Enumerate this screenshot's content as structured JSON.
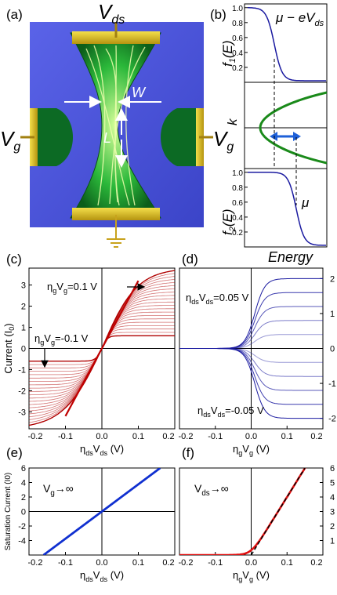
{
  "figure": {
    "panel_labels": {
      "a": "(a)",
      "b": "(b)",
      "c": "(c)",
      "d": "(d)",
      "e": "(e)",
      "f": "(f)"
    },
    "device": {
      "vds": "V",
      "vds_sub": "ds",
      "vg_left": "V",
      "vg_right": "V",
      "vg_sub": "g",
      "w": "W",
      "l": "L"
    },
    "energy_panel": {
      "f1_label": "f",
      "f1_sub": "1",
      "f1_arg": "(E)",
      "f2_label": "f",
      "f2_sub": "2",
      "f2_arg": "(E)",
      "k_label": "k",
      "mu_minus": "μ − eV",
      "mu_minus_sub": "ds",
      "mu": "μ",
      "energy_label": "Energy",
      "yticks": [
        "1.0",
        "0.8",
        "0.6",
        "0.4",
        "0.2"
      ]
    }
  },
  "chart_data": [
    {
      "panel": "c",
      "type": "line",
      "xlabel": "η",
      "xlabel_sub1": "ds",
      "xlabel_mid": "V",
      "xlabel_sub2": "ds",
      "xlabel_unit": " (V)",
      "ylabel": "Current (I",
      "ylabel_sub": "0",
      "ylabel_end": ")",
      "xlim": [
        -0.2,
        0.2
      ],
      "ylim": [
        -3.8,
        3.8
      ],
      "xticks": [
        "-0.2",
        "-0.1",
        "0.0",
        "0.1",
        "0.2"
      ],
      "yticks": [
        "3",
        "2",
        "1",
        "0",
        "-1",
        "-2",
        "-3"
      ],
      "annotation_top": "η",
      "annotation_top_sub1": "g",
      "annotation_top_mid": "V",
      "annotation_top_sub2": "g",
      "annotation_top_val": "=0.1 V",
      "annotation_bottom": "η",
      "annotation_bottom_sub1": "g",
      "annotation_bottom_mid": "V",
      "annotation_bottom_sub2": "g",
      "annotation_bottom_val": "=-0.1 V",
      "family_vg": [
        -0.1,
        -0.09,
        -0.08,
        -0.07,
        -0.06,
        -0.05,
        -0.04,
        -0.03,
        -0.02,
        -0.01,
        0.0,
        0.01,
        0.02,
        0.03,
        0.04,
        0.05,
        0.06,
        0.07,
        0.08,
        0.09,
        0.1
      ],
      "color": "#b00000"
    },
    {
      "panel": "d",
      "type": "line",
      "xlabel": "η",
      "xlabel_sub1": "g",
      "xlabel_mid": "V",
      "xlabel_sub2": "g",
      "xlabel_unit": " (V)",
      "xlim": [
        -0.2,
        0.2
      ],
      "ylim": [
        -2.3,
        2.3
      ],
      "xticks": [
        "-0.2",
        "-0.1",
        "0.0",
        "0.1",
        "0.2"
      ],
      "yticks": [
        "2",
        "1",
        "0",
        "-1",
        "-2"
      ],
      "annotation_top": "η",
      "annotation_top_sub1": "ds",
      "annotation_top_mid": "V",
      "annotation_top_sub2": "ds",
      "annotation_top_val": "=0.05 V",
      "annotation_bottom": "η",
      "annotation_bottom_sub1": "ds",
      "annotation_bottom_mid": "V",
      "annotation_bottom_sub2": "ds",
      "annotation_bottom_val": "=-0.05 V",
      "family_vds": [
        0.05,
        0.04,
        0.03,
        0.02,
        0.01,
        -0.01,
        -0.02,
        -0.03,
        -0.04,
        -0.05
      ],
      "color": "#1a1aa0"
    },
    {
      "panel": "e",
      "type": "line",
      "xlabel": "η",
      "xlabel_sub1": "ds",
      "xlabel_mid": "V",
      "xlabel_sub2": "ds",
      "xlabel_unit": " (V)",
      "ylabel": "Saturation Current (I0)",
      "xlim": [
        -0.2,
        0.2
      ],
      "ylim": [
        -6,
        6
      ],
      "xticks": [
        "-0.2",
        "-0.1",
        "0.0",
        "0.1",
        "0.2"
      ],
      "yticks": [
        "6",
        "4",
        "2",
        "0",
        "-2",
        "-4"
      ],
      "annotation": "V",
      "annotation_sub": "g",
      "annotation_arrow": "→∞",
      "series": [
        {
          "x": [
            -0.16,
            0.16
          ],
          "y": [
            -6.0,
            6.0
          ]
        }
      ],
      "color": "#1030d0"
    },
    {
      "panel": "f",
      "type": "line",
      "xlabel": "η",
      "xlabel_sub1": "g",
      "xlabel_mid": "V",
      "xlabel_sub2": "g",
      "xlabel_unit": " (V)",
      "xlim": [
        -0.2,
        0.2
      ],
      "ylim": [
        0,
        6
      ],
      "xticks": [
        "-0.2",
        "-0.1",
        "0.0",
        "0.1",
        "0.2"
      ],
      "yticks": [
        "6",
        "5",
        "4",
        "3",
        "2",
        "1"
      ],
      "annotation": "V",
      "annotation_sub": "ds",
      "annotation_arrow": "→∞",
      "color": "#e01010"
    }
  ]
}
